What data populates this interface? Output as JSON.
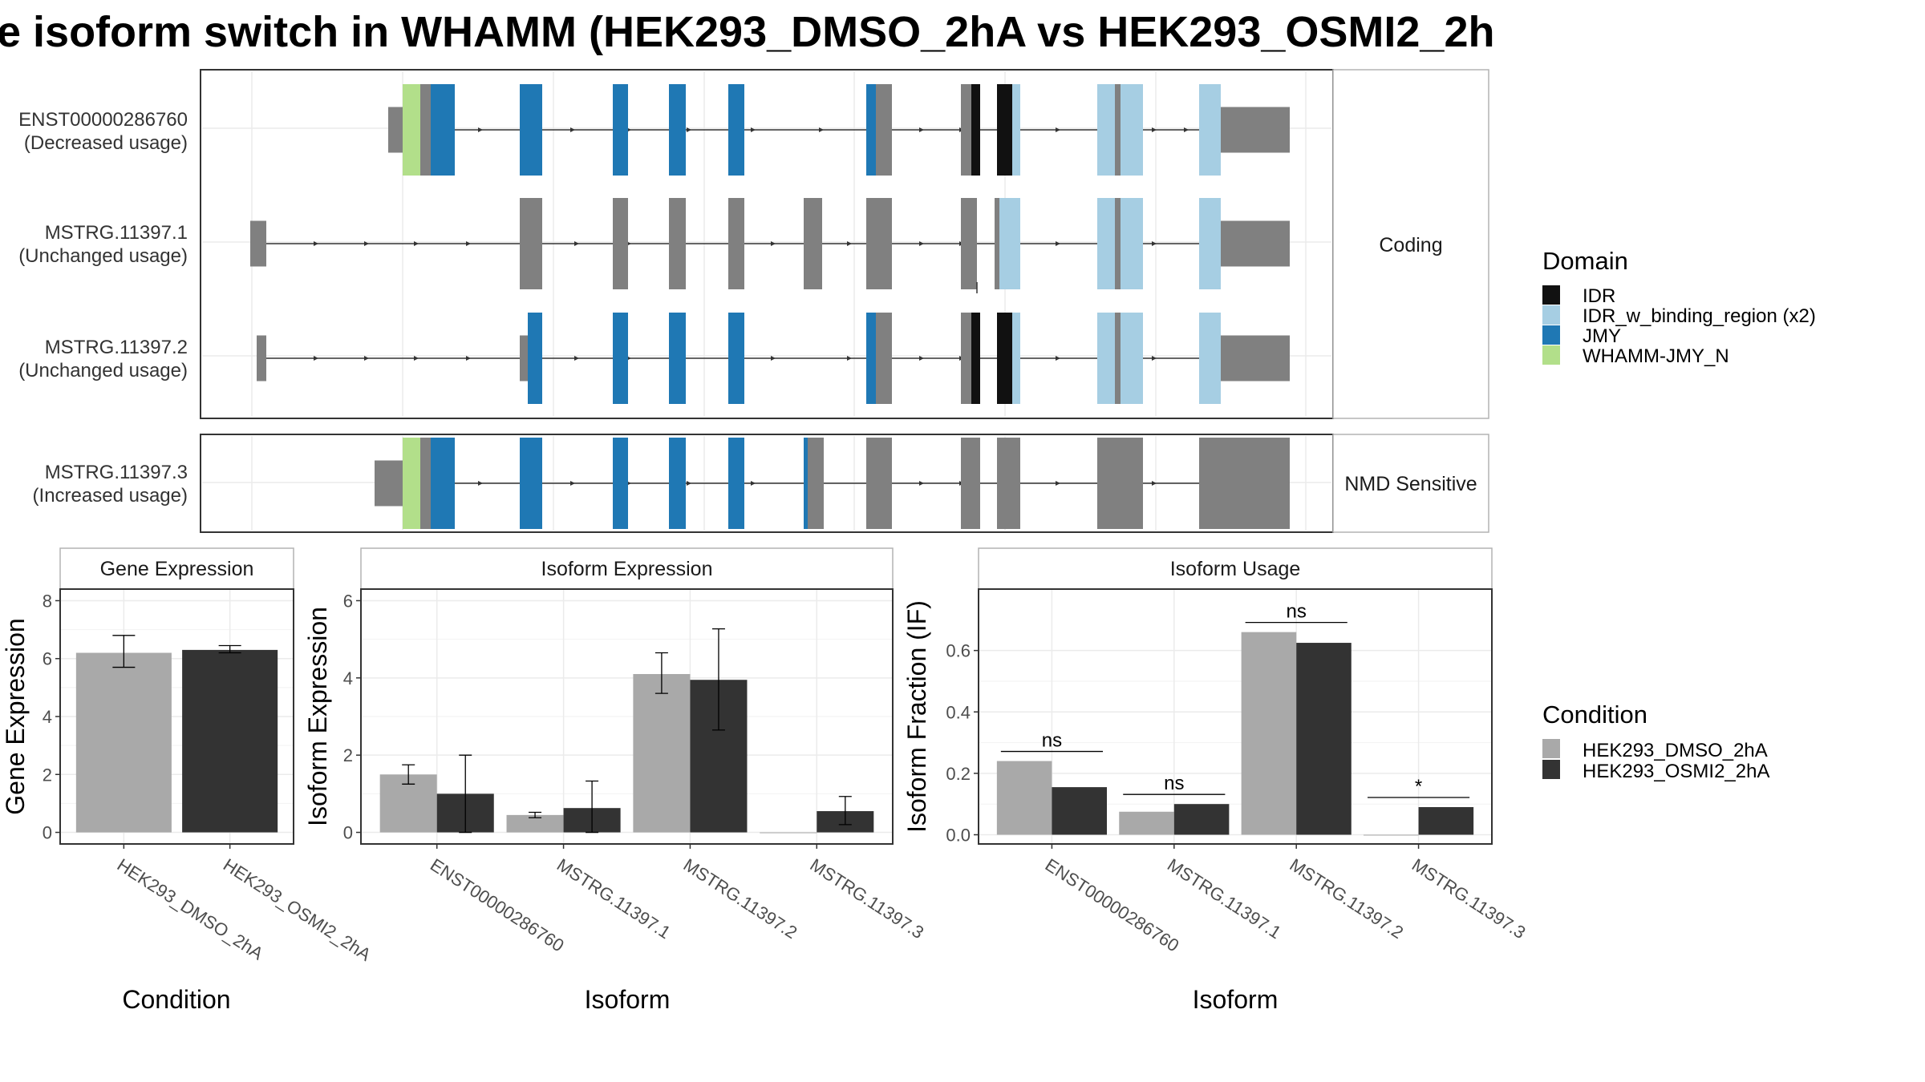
{
  "title": "e isoform switch in WHAMM (HEK293_DMSO_2hA vs HEK293_OSMI2_2h",
  "colors": {
    "IDR": "#111111",
    "IDR_w_binding_region (x2)": "#a6cee3",
    "JMY": "#1f78b4",
    "WHAMM-JMY_N": "#b2df8a",
    "noncoding": "#808080",
    "HEK293_DMSO_2hA": "#a9a9a9",
    "HEK293_OSMI2_2hA": "#333333"
  },
  "structure": {
    "facets": [
      "Coding",
      "NMD Sensitive"
    ],
    "isoforms": [
      {
        "id": "ENST00000286760",
        "usage": "(Decreased usage)",
        "facet": "Coding"
      },
      {
        "id": "MSTRG.11397.1",
        "usage": "(Unchanged usage)",
        "facet": "Coding"
      },
      {
        "id": "MSTRG.11397.2",
        "usage": "(Unchanged usage)",
        "facet": "Coding"
      },
      {
        "id": "MSTRG.11397.3",
        "usage": "(Increased usage)",
        "facet": "NMD Sensitive"
      }
    ]
  },
  "legend_domain": {
    "title": "Domain",
    "items": [
      "IDR",
      "IDR_w_binding_region (x2)",
      "JMY",
      "WHAMM-JMY_N"
    ]
  },
  "legend_condition": {
    "title": "Condition",
    "items": [
      "HEK293_DMSO_2hA",
      "HEK293_OSMI2_2hA"
    ]
  },
  "chart_data": [
    {
      "type": "bar",
      "title": "Gene Expression",
      "xlabel": "Condition",
      "ylabel": "Gene Expression",
      "categories": [
        "HEK293_DMSO_2hA",
        "HEK293_OSMI2_2hA"
      ],
      "values": [
        6.2,
        6.3
      ],
      "error_low": [
        5.7,
        6.2
      ],
      "error_high": [
        6.8,
        6.45
      ],
      "ylim": [
        -0.4,
        8.4
      ],
      "yticks": [
        0,
        2,
        4,
        6,
        8
      ]
    },
    {
      "type": "bar",
      "title": "Isoform Expression",
      "xlabel": "Isoform",
      "ylabel": "Isoform Expression",
      "categories": [
        "ENST00000286760",
        "MSTRG.11397.1",
        "MSTRG.11397.2",
        "MSTRG.11397.3"
      ],
      "series": [
        {
          "name": "HEK293_DMSO_2hA",
          "values": [
            1.5,
            0.45,
            4.1,
            0.0
          ],
          "error_low": [
            1.25,
            0.38,
            3.6,
            0.0
          ],
          "error_high": [
            1.75,
            0.52,
            4.65,
            0.0
          ]
        },
        {
          "name": "HEK293_OSMI2_2hA",
          "values": [
            1.0,
            0.63,
            3.95,
            0.55
          ],
          "error_low": [
            0.0,
            0.0,
            2.65,
            0.2
          ],
          "error_high": [
            2.0,
            1.33,
            5.27,
            0.93
          ]
        }
      ],
      "ylim": [
        -0.3,
        6.3
      ],
      "yticks": [
        0,
        2,
        4,
        6
      ]
    },
    {
      "type": "bar",
      "title": "Isoform Usage",
      "xlabel": "Isoform",
      "ylabel": "Isoform Fraction (IF)",
      "categories": [
        "ENST00000286760",
        "MSTRG.11397.1",
        "MSTRG.11397.2",
        "MSTRG.11397.3"
      ],
      "series": [
        {
          "name": "HEK293_DMSO_2hA",
          "values": [
            0.24,
            0.075,
            0.66,
            0.0
          ]
        },
        {
          "name": "HEK293_OSMI2_2hA",
          "values": [
            0.155,
            0.1,
            0.625,
            0.09
          ]
        }
      ],
      "significance": [
        "ns",
        "ns",
        "ns",
        "*"
      ],
      "ylim": [
        -0.03,
        0.8
      ],
      "yticks": [
        0.0,
        0.2,
        0.4,
        0.6
      ],
      "ytick_labels": [
        "0.0",
        "0.2",
        "0.4",
        "0.6"
      ]
    }
  ]
}
